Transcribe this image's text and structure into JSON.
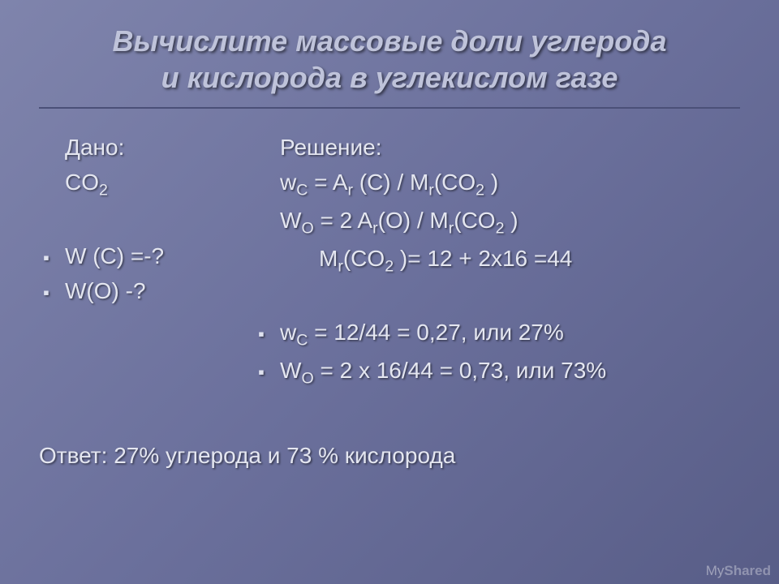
{
  "background_gradient": [
    "#7f84ac",
    "#6b709c",
    "#585d87"
  ],
  "text_color": "#e4e6f0",
  "title_color": "#bfc3da",
  "title_line1": "Вычислите массовые доли углерода",
  "title_line2": "и кислорода в углекислом газе",
  "left": {
    "given_label": "Дано:",
    "formula": "CO",
    "formula_sub": "2",
    "q1_prefix": "W (C) =-?",
    "q2_prefix": "W(O) -?"
  },
  "right": {
    "sol_label": "Решение:",
    "eq1_a": "w",
    "eq1_sub": "C",
    "eq1_b": " = A",
    "eq1_rsub": "r",
    "eq1_c": " (C) / M",
    "eq1_rsub2": "r",
    "eq1_d": "(CO",
    "eq1_cosub": "2",
    "eq1_e": " )",
    "eq2_a": "W",
    "eq2_sub": "O",
    "eq2_b": " = 2 A",
    "eq2_rsub": "r",
    "eq2_c": "(O) / M",
    "eq2_rsub2": "r",
    "eq2_d": "(CO",
    "eq2_cosub": "2",
    "eq2_e": " )",
    "eq3_a": "M",
    "eq3_rsub": "r",
    "eq3_b": "(CO",
    "eq3_cosub": "2",
    "eq3_c": " )= 12 + 2x16 =44",
    "res1_a": "w",
    "res1_sub": "C",
    "res1_b": " = 12/44 = 0,27, или 27%",
    "res2_a": "W",
    "res2_sub": "O",
    "res2_b": " = 2 x 16/44 = 0,73, или 73%"
  },
  "answer": "Ответ: 27% углерода и 73 % кислорода",
  "watermark_my": "My",
  "watermark_shared": "Shared",
  "fonts": {
    "title_pt": 36,
    "body_pt": 28
  }
}
